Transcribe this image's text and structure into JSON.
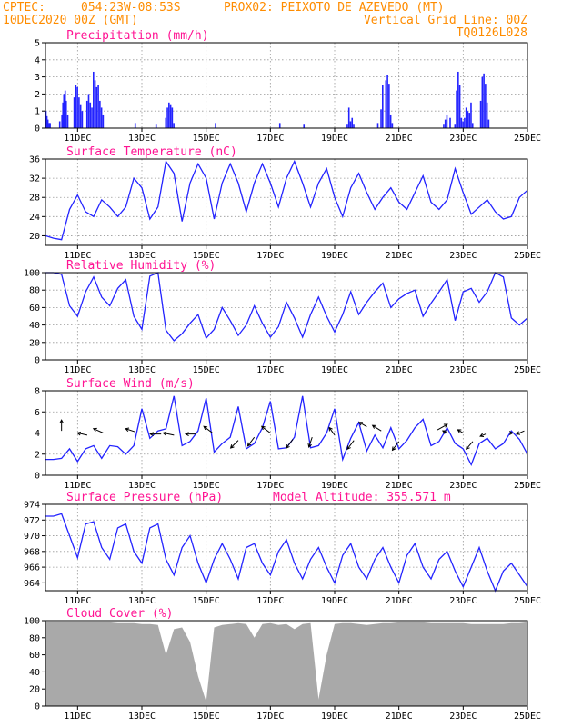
{
  "header": {
    "line1_left": "CPTEC:",
    "line1_coords": "054:23W-08:53S",
    "line1_station": "PROX02: PEIXOTO DE AZEVEDO (MT)",
    "line2_left": "10DEC2020 00Z (GMT)",
    "line2_right": "Vertical Grid Line: 00Z",
    "line3_right": "TQ0126L028"
  },
  "colors": {
    "header": "#ff8c00",
    "title": "#ff1493",
    "line": "#2323ff",
    "cloud": "#a9a9a9",
    "grid": "#999999"
  },
  "x_axis": {
    "start": "10DEC2020 00Z",
    "end": "25DEC2020 00Z",
    "labels": [
      "11DEC",
      "13DEC",
      "15DEC",
      "17DEC",
      "19DEC",
      "21DEC",
      "23DEC",
      "25DEC"
    ]
  },
  "chart_data": [
    {
      "type": "bar",
      "title": "Precipitation (mm/h)",
      "ylim": [
        0,
        5
      ],
      "yticks": [
        "0",
        "1",
        "2",
        "3",
        "4",
        "5"
      ],
      "grid": true,
      "x": [
        0.02,
        0.05,
        0.08,
        0.12,
        0.15,
        0.45,
        0.52,
        0.55,
        0.58,
        0.62,
        0.65,
        0.7,
        0.9,
        0.95,
        1.0,
        1.05,
        1.1,
        1.15,
        1.3,
        1.35,
        1.4,
        1.45,
        1.5,
        1.55,
        1.6,
        1.65,
        1.7,
        1.75,
        1.8,
        2.8,
        3.45,
        3.75,
        3.8,
        3.85,
        3.9,
        3.95,
        4.0,
        5.3,
        7.3,
        8.05,
        9.4,
        9.45,
        9.5,
        9.55,
        9.6,
        10.35,
        10.45,
        10.5,
        10.6,
        10.65,
        10.7,
        10.75,
        10.8,
        12.4,
        12.45,
        12.5,
        12.6,
        12.75,
        12.8,
        12.85,
        12.9,
        12.95,
        13.0,
        13.05,
        13.1,
        13.15,
        13.2,
        13.25,
        13.3,
        13.55,
        13.6,
        13.65,
        13.7,
        13.75,
        13.8
      ],
      "values": [
        1.0,
        0.7,
        0.5,
        0.3,
        0.3,
        0.4,
        0.8,
        1.5,
        2.0,
        2.2,
        1.6,
        0.8,
        1.8,
        2.5,
        2.4,
        1.8,
        1.4,
        1.0,
        1.6,
        2.0,
        1.5,
        1.2,
        3.3,
        2.8,
        2.4,
        2.5,
        1.6,
        1.2,
        0.8,
        0.3,
        0.2,
        0.6,
        1.2,
        1.5,
        1.4,
        1.2,
        0.3,
        0.3,
        0.3,
        0.2,
        0.2,
        1.2,
        0.4,
        0.6,
        0.2,
        0.3,
        1.1,
        2.5,
        2.8,
        3.1,
        2.6,
        0.8,
        0.3,
        0.2,
        0.5,
        0.8,
        0.6,
        0.2,
        2.2,
        3.3,
        2.5,
        0.6,
        0.4,
        0.6,
        1.2,
        1.0,
        0.9,
        1.5,
        0.3,
        1.6,
        3.0,
        3.2,
        2.6,
        1.5,
        0.5
      ]
    },
    {
      "type": "line",
      "title": "Surface Temperature (nC)",
      "ylim": [
        18,
        36
      ],
      "yticks": [
        "20",
        "24",
        "28",
        "32",
        "36"
      ],
      "grid": true,
      "x": [
        0.0,
        0.25,
        0.5,
        0.75,
        1.0,
        1.25,
        1.5,
        1.75,
        2.0,
        2.25,
        2.5,
        2.75,
        3.0,
        3.25,
        3.5,
        3.75,
        4.0,
        4.25,
        4.5,
        4.75,
        5.0,
        5.25,
        5.5,
        5.75,
        6.0,
        6.25,
        6.5,
        6.75,
        7.0,
        7.25,
        7.5,
        7.75,
        8.0,
        8.25,
        8.5,
        8.75,
        9.0,
        9.25,
        9.5,
        9.75,
        10.0,
        10.25,
        10.5,
        10.75,
        11.0,
        11.25,
        11.5,
        11.75,
        12.0,
        12.25,
        12.5,
        12.75,
        13.0,
        13.25,
        13.5,
        13.75,
        14.0,
        14.25,
        14.5,
        14.75,
        15.0
      ],
      "values": [
        20.0,
        19.5,
        19.2,
        25.5,
        28.5,
        25.0,
        24.0,
        27.5,
        26.0,
        24.0,
        26.0,
        32.0,
        30.0,
        23.5,
        26.0,
        35.5,
        33.0,
        23.0,
        31.0,
        35.0,
        32.0,
        23.5,
        31.0,
        35.0,
        31.0,
        25.0,
        31.0,
        35.0,
        31.0,
        26.0,
        32.0,
        35.5,
        31.0,
        26.0,
        31.0,
        34.0,
        28.0,
        24.0,
        30.0,
        33.0,
        29.0,
        25.5,
        28.0,
        30.0,
        27.0,
        25.5,
        29.0,
        32.5,
        27.0,
        25.5,
        27.5,
        34.0,
        29.0,
        24.5,
        26.0,
        27.5,
        25.0,
        23.5,
        24.0,
        28.0,
        29.5
      ]
    },
    {
      "type": "line",
      "title": "Relative Humidity (%)",
      "ylim": [
        0,
        100
      ],
      "yticks": [
        "0",
        "20",
        "40",
        "60",
        "80",
        "100"
      ],
      "grid": true,
      "x": [
        0.0,
        0.25,
        0.5,
        0.75,
        1.0,
        1.25,
        1.5,
        1.75,
        2.0,
        2.25,
        2.5,
        2.75,
        3.0,
        3.25,
        3.5,
        3.75,
        4.0,
        4.25,
        4.5,
        4.75,
        5.0,
        5.25,
        5.5,
        5.75,
        6.0,
        6.25,
        6.5,
        6.75,
        7.0,
        7.25,
        7.5,
        7.75,
        8.0,
        8.25,
        8.5,
        8.75,
        9.0,
        9.25,
        9.5,
        9.75,
        10.0,
        10.25,
        10.5,
        10.75,
        11.0,
        11.25,
        11.5,
        11.75,
        12.0,
        12.25,
        12.5,
        12.75,
        13.0,
        13.25,
        13.5,
        13.75,
        14.0,
        14.25,
        14.5,
        14.75,
        15.0
      ],
      "values": [
        100.0,
        100.0,
        98.0,
        62.0,
        50.0,
        78.0,
        95.0,
        72.0,
        62.0,
        82.0,
        92.0,
        50.0,
        35.0,
        96.0,
        100.0,
        34.0,
        22.0,
        30.0,
        42.0,
        52.0,
        25.0,
        35.0,
        60.0,
        45.0,
        28.0,
        40.0,
        62.0,
        42.0,
        26.0,
        38.0,
        66.0,
        48.0,
        26.0,
        52.0,
        72.0,
        50.0,
        32.0,
        52.0,
        78.0,
        52.0,
        66.0,
        78.0,
        88.0,
        60.0,
        70.0,
        76.0,
        80.0,
        50.0,
        65.0,
        78.0,
        92.0,
        45.0,
        78.0,
        82.0,
        66.0,
        78.0,
        100.0,
        95.0,
        48.0,
        40.0,
        48.0
      ]
    },
    {
      "type": "line",
      "title": "Surface Wind (m/s)",
      "ylim": [
        0,
        8
      ],
      "yticks": [
        "0",
        "2",
        "4",
        "6",
        "8"
      ],
      "grid": true,
      "x": [
        0.0,
        0.25,
        0.5,
        0.75,
        1.0,
        1.25,
        1.5,
        1.75,
        2.0,
        2.25,
        2.5,
        2.75,
        3.0,
        3.25,
        3.5,
        3.75,
        4.0,
        4.25,
        4.5,
        4.75,
        5.0,
        5.25,
        5.5,
        5.75,
        6.0,
        6.25,
        6.5,
        6.75,
        7.0,
        7.25,
        7.5,
        7.75,
        8.0,
        8.25,
        8.5,
        8.75,
        9.0,
        9.25,
        9.5,
        9.75,
        10.0,
        10.25,
        10.5,
        10.75,
        11.0,
        11.25,
        11.5,
        11.75,
        12.0,
        12.25,
        12.5,
        12.75,
        13.0,
        13.25,
        13.5,
        13.75,
        14.0,
        14.25,
        14.5,
        14.75,
        15.0
      ],
      "values": [
        1.5,
        1.5,
        1.6,
        2.5,
        1.3,
        2.5,
        2.8,
        1.6,
        2.8,
        2.7,
        2.0,
        2.8,
        6.3,
        3.5,
        4.2,
        4.4,
        7.5,
        2.8,
        3.2,
        4.2,
        7.3,
        2.2,
        3.0,
        3.6,
        6.5,
        2.5,
        3.0,
        4.5,
        7.0,
        2.5,
        2.6,
        3.6,
        7.5,
        2.6,
        2.8,
        4.0,
        6.3,
        1.5,
        3.5,
        5.0,
        2.3,
        3.8,
        2.6,
        4.5,
        2.5,
        3.3,
        4.5,
        5.3,
        2.8,
        3.2,
        4.5,
        3.0,
        2.5,
        1.0,
        3.0,
        3.5,
        2.5,
        3.0,
        4.2,
        3.4,
        2.0
      ],
      "arrows": [
        {
          "x": 0.5,
          "y": 4.2,
          "dx": 0.0,
          "dy": 1.0
        },
        {
          "x": 1.3,
          "y": 3.8,
          "dx": -0.9,
          "dy": 0.2
        },
        {
          "x": 1.8,
          "y": 4.0,
          "dx": -0.9,
          "dy": 0.4
        },
        {
          "x": 2.8,
          "y": 4.1,
          "dx": -0.9,
          "dy": 0.3
        },
        {
          "x": 3.6,
          "y": 3.9,
          "dx": -1.0,
          "dy": 0.0
        },
        {
          "x": 4.0,
          "y": 3.8,
          "dx": -1.0,
          "dy": 0.2
        },
        {
          "x": 4.7,
          "y": 3.9,
          "dx": -1.0,
          "dy": 0.0
        },
        {
          "x": 5.2,
          "y": 4.0,
          "dx": -0.8,
          "dy": 0.6
        },
        {
          "x": 6.0,
          "y": 3.3,
          "dx": -0.7,
          "dy": -0.7
        },
        {
          "x": 6.5,
          "y": 3.6,
          "dx": -0.6,
          "dy": -0.8
        },
        {
          "x": 7.0,
          "y": 4.0,
          "dx": -0.8,
          "dy": 0.6
        },
        {
          "x": 7.7,
          "y": 3.4,
          "dx": -0.6,
          "dy": -0.8
        },
        {
          "x": 8.3,
          "y": 3.6,
          "dx": -0.3,
          "dy": -0.9
        },
        {
          "x": 9.0,
          "y": 3.8,
          "dx": -0.5,
          "dy": 0.7
        },
        {
          "x": 9.6,
          "y": 3.3,
          "dx": -0.6,
          "dy": -0.8
        },
        {
          "x": 10.0,
          "y": 4.6,
          "dx": -0.7,
          "dy": 0.4
        },
        {
          "x": 10.45,
          "y": 4.2,
          "dx": -0.8,
          "dy": 0.5
        },
        {
          "x": 11.0,
          "y": 3.2,
          "dx": -0.6,
          "dy": -0.8
        },
        {
          "x": 12.2,
          "y": 4.3,
          "dx": 0.9,
          "dy": 0.5
        },
        {
          "x": 12.5,
          "y": 4.0,
          "dx": -0.4,
          "dy": 0.2
        },
        {
          "x": 13.0,
          "y": 4.0,
          "dx": -0.5,
          "dy": 0.3
        },
        {
          "x": 13.3,
          "y": 3.2,
          "dx": -0.6,
          "dy": -0.7
        },
        {
          "x": 13.7,
          "y": 3.9,
          "dx": -0.5,
          "dy": -0.2
        },
        {
          "x": 14.2,
          "y": 4.0,
          "dx": 1.0,
          "dy": 0.0
        },
        {
          "x": 14.9,
          "y": 4.2,
          "dx": -0.7,
          "dy": -0.3
        }
      ]
    },
    {
      "type": "line",
      "title": "Surface Pressure (hPa)",
      "annotation": "Model Altitude: 355.571 m",
      "ylim": [
        963,
        974
      ],
      "yticks": [
        "964",
        "966",
        "968",
        "970",
        "972",
        "974"
      ],
      "grid": true,
      "x": [
        0.0,
        0.25,
        0.5,
        0.75,
        1.0,
        1.25,
        1.5,
        1.75,
        2.0,
        2.25,
        2.5,
        2.75,
        3.0,
        3.25,
        3.5,
        3.75,
        4.0,
        4.25,
        4.5,
        4.75,
        5.0,
        5.25,
        5.5,
        5.75,
        6.0,
        6.25,
        6.5,
        6.75,
        7.0,
        7.25,
        7.5,
        7.75,
        8.0,
        8.25,
        8.5,
        8.75,
        9.0,
        9.25,
        9.5,
        9.75,
        10.0,
        10.25,
        10.5,
        10.75,
        11.0,
        11.25,
        11.5,
        11.75,
        12.0,
        12.25,
        12.5,
        12.75,
        13.0,
        13.25,
        13.5,
        13.75,
        14.0,
        14.25,
        14.5,
        14.75,
        15.0
      ],
      "values": [
        972.5,
        972.5,
        972.8,
        970.0,
        967.2,
        971.5,
        971.8,
        968.5,
        967.0,
        971.0,
        971.5,
        968.0,
        966.5,
        971.0,
        971.5,
        967.0,
        965.0,
        968.5,
        970.0,
        966.5,
        964.0,
        967.0,
        969.0,
        967.0,
        964.5,
        968.5,
        969.0,
        966.5,
        965.0,
        968.0,
        969.5,
        966.5,
        964.5,
        967.0,
        968.5,
        966.0,
        964.0,
        967.5,
        969.0,
        966.0,
        964.5,
        967.0,
        968.5,
        966.0,
        964.0,
        967.5,
        969.0,
        966.0,
        964.5,
        967.0,
        968.0,
        965.5,
        963.5,
        966.0,
        968.5,
        965.5,
        963.0,
        965.5,
        966.5,
        965.0,
        963.5
      ]
    },
    {
      "type": "area",
      "title": "Cloud Cover (%)",
      "ylim": [
        0,
        100
      ],
      "yticks": [
        "0",
        "20",
        "40",
        "60",
        "80",
        "100"
      ],
      "grid": false,
      "x": [
        0.0,
        0.25,
        0.5,
        0.75,
        1.0,
        1.25,
        1.5,
        1.75,
        2.0,
        2.25,
        2.5,
        2.75,
        3.0,
        3.25,
        3.5,
        3.75,
        4.0,
        4.25,
        4.5,
        4.75,
        5.0,
        5.25,
        5.5,
        5.75,
        6.0,
        6.25,
        6.5,
        6.75,
        7.0,
        7.25,
        7.5,
        7.75,
        8.0,
        8.25,
        8.5,
        8.75,
        9.0,
        9.25,
        9.5,
        9.75,
        10.0,
        10.25,
        10.5,
        10.75,
        11.0,
        11.25,
        11.5,
        11.75,
        12.0,
        12.25,
        12.5,
        12.75,
        13.0,
        13.25,
        13.5,
        13.75,
        14.0,
        14.25,
        14.5,
        14.75,
        15.0
      ],
      "values": [
        98,
        98,
        98,
        98,
        98,
        98,
        98,
        98,
        98,
        97,
        97,
        97,
        96,
        96,
        95,
        60,
        90,
        92,
        75,
        35,
        5,
        92,
        95,
        96,
        97,
        96,
        80,
        96,
        97,
        95,
        96,
        90,
        96,
        97,
        8,
        60,
        96,
        97,
        97,
        96,
        95,
        96,
        97,
        97,
        98,
        98,
        98,
        98,
        97,
        97,
        97,
        97,
        97,
        96,
        96,
        96,
        96,
        96,
        97,
        97,
        98
      ]
    }
  ]
}
